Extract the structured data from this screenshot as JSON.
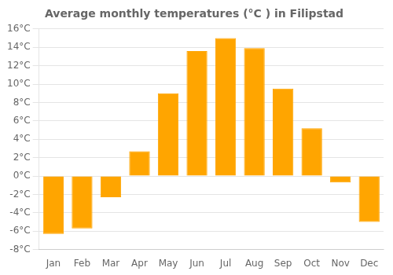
{
  "chart_data": {
    "type": "bar",
    "title": "Average monthly temperatures (°C ) in Filipstad",
    "categories": [
      "Jan",
      "Feb",
      "Mar",
      "Apr",
      "May",
      "Jun",
      "Jul",
      "Aug",
      "Sep",
      "Oct",
      "Nov",
      "Dec"
    ],
    "values": [
      -6.3,
      -5.7,
      -2.3,
      2.7,
      9.0,
      13.6,
      15.0,
      13.9,
      9.5,
      5.2,
      -0.7,
      -5.0
    ],
    "color": "#FFA500",
    "ylim": [
      -8,
      16
    ],
    "yticks": [
      {
        "value": -8,
        "label": "-8°C"
      },
      {
        "value": -6,
        "label": "-6°C"
      },
      {
        "value": -4,
        "label": "-4°C"
      },
      {
        "value": -2,
        "label": "-2°C"
      },
      {
        "value": 0,
        "label": "0°C"
      },
      {
        "value": 2,
        "label": "2°C"
      },
      {
        "value": 4,
        "label": "4°C"
      },
      {
        "value": 6,
        "label": "6°C"
      },
      {
        "value": 8,
        "label": "8°C"
      },
      {
        "value": 10,
        "label": "10°C"
      },
      {
        "value": 12,
        "label": "12°C"
      },
      {
        "value": 14,
        "label": "14°C"
      },
      {
        "value": 16,
        "label": "16°C"
      }
    ],
    "grid": true
  }
}
